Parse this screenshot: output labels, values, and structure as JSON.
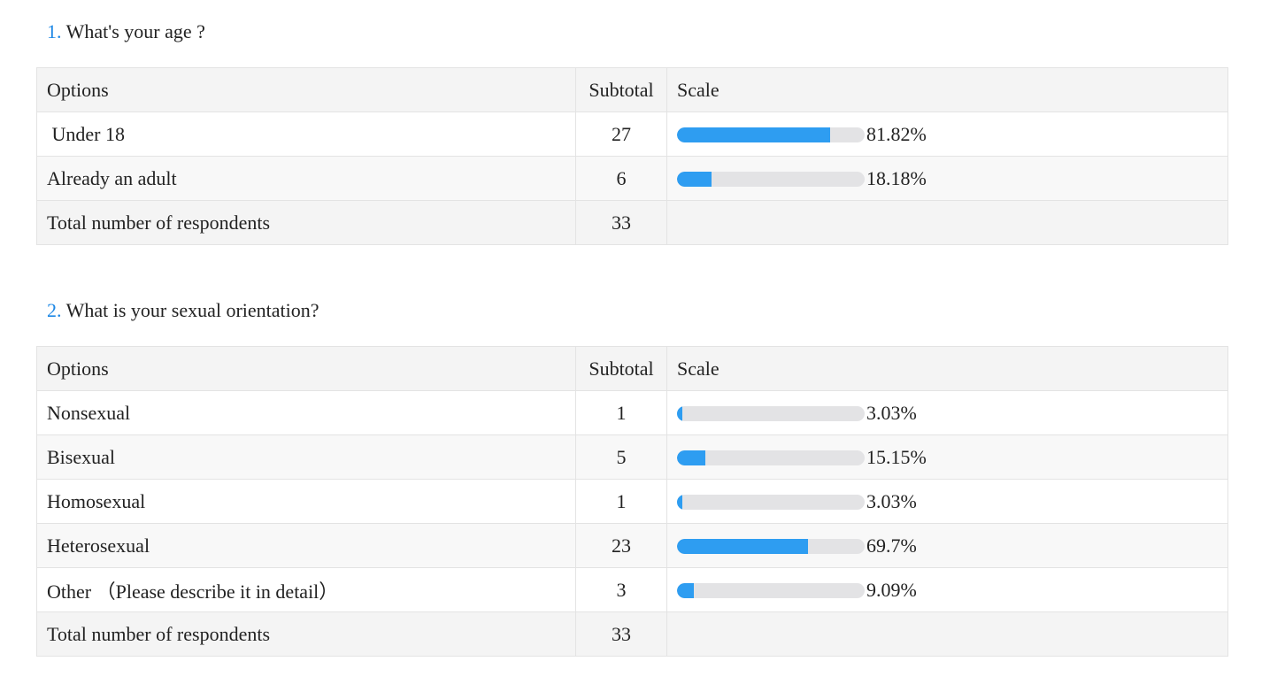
{
  "accent_color": "#2e9df1",
  "question_number_color": "#1e88e5",
  "questions": [
    {
      "number": "1.",
      "title": "What's your age ?",
      "header": {
        "options": "Options",
        "subtotal": "Subtotal",
        "scale": "Scale"
      },
      "rows": [
        {
          "option": " Under 18",
          "subtotal": "27",
          "percent_label": "81.82%",
          "percent": 81.82
        },
        {
          "option": "Already an adult",
          "subtotal": "6",
          "percent_label": "18.18%",
          "percent": 18.18
        }
      ],
      "total": {
        "label": "Total number of respondents",
        "value": "33"
      }
    },
    {
      "number": "2.",
      "title": "What is your sexual orientation?",
      "header": {
        "options": "Options",
        "subtotal": "Subtotal",
        "scale": "Scale"
      },
      "rows": [
        {
          "option": "Nonsexual",
          "subtotal": "1",
          "percent_label": "3.03%",
          "percent": 3.03
        },
        {
          "option": "Bisexual",
          "subtotal": "5",
          "percent_label": "15.15%",
          "percent": 15.15
        },
        {
          "option": "Homosexual",
          "subtotal": "1",
          "percent_label": "3.03%",
          "percent": 3.03
        },
        {
          "option": "Heterosexual",
          "subtotal": "23",
          "percent_label": "69.7%",
          "percent": 69.7
        },
        {
          "option": "Other （Please describe it in detail）",
          "subtotal": "3",
          "percent_label": "9.09%",
          "percent": 9.09
        }
      ],
      "total": {
        "label": "Total number of respondents",
        "value": "33"
      }
    }
  ]
}
